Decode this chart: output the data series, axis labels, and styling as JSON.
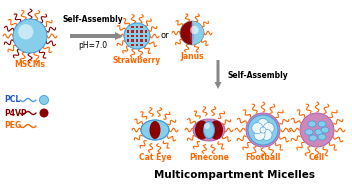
{
  "bg_color": "#ffffff",
  "orange": "#FF6600",
  "dark_red": "#8B0000",
  "crimson": "#B22222",
  "blue_light": "#87CEEB",
  "blue_med": "#4499DD",
  "pink_outer": "#CC88BB",
  "pink_edge": "#AA66AA",
  "pcl_color": "#2255CC",
  "p4vp_color": "#880000",
  "peg_color": "#FF6600",
  "text_orange": "#FF6600",
  "text_black": "#000000",
  "labels": {
    "mscms": "MSCMs",
    "strawberry": "Strawberry",
    "janus": "Janus",
    "cat_eye": "Cat Eye",
    "pinecone": "Pinecone",
    "football": "Football",
    "cell": "Cell",
    "self_assembly1": "Self-Assembly",
    "ph": "pH=7.0",
    "or": "or",
    "self_assembly2": "Self-Assembly",
    "multicompartment": "Multicompartment Micelles",
    "pcl": "PCL",
    "p4vp": "P4VP",
    "peg": "PEG"
  }
}
